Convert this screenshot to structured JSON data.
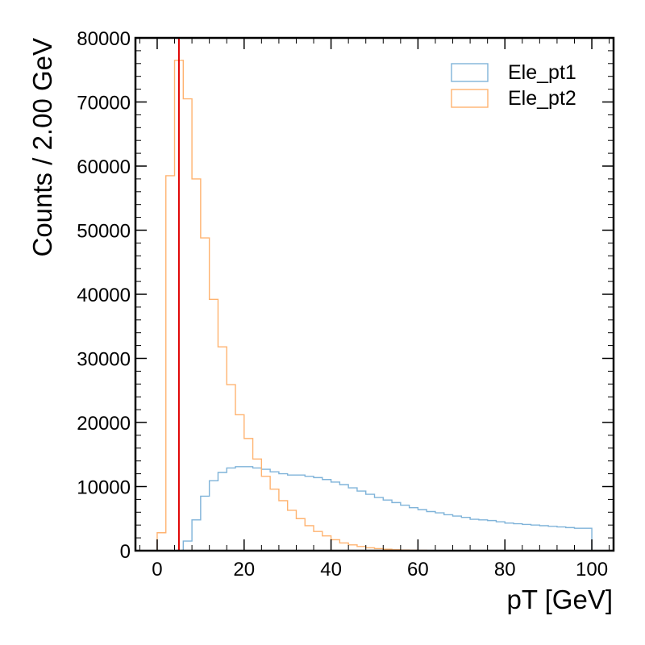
{
  "chart_data": {
    "type": "histogram",
    "title": "",
    "xlabel": "pT [GeV]",
    "ylabel": "Counts / 2.00 GeV",
    "xlim": [
      -5,
      105
    ],
    "ylim": [
      0,
      80000
    ],
    "x_ticks": [
      0,
      20,
      40,
      60,
      80,
      100
    ],
    "y_ticks": [
      0,
      10000,
      20000,
      30000,
      40000,
      50000,
      60000,
      70000,
      80000
    ],
    "bin_edges_start": 0,
    "bin_width": 2,
    "grid": false,
    "legend_position": "top-right",
    "series": [
      {
        "name": "Ele_pt1",
        "color": "#7fb3d9",
        "values": [
          0,
          0,
          0,
          1500,
          4800,
          8500,
          10900,
          12200,
          12900,
          13100,
          13100,
          12900,
          12700,
          12300,
          12000,
          11800,
          11800,
          11600,
          11400,
          11100,
          10700,
          10300,
          9800,
          9300,
          8800,
          8300,
          7900,
          7500,
          7100,
          6700,
          6400,
          6100,
          5900,
          5600,
          5400,
          5200,
          4900,
          4800,
          4700,
          4500,
          4300,
          4200,
          4100,
          4000,
          3900,
          3800,
          3700,
          3600,
          3500,
          3500
        ]
      },
      {
        "name": "Ele_pt2",
        "color": "#ffb370",
        "values": [
          2800,
          58500,
          76500,
          70500,
          58000,
          48800,
          39200,
          31800,
          25900,
          21200,
          17500,
          14300,
          11600,
          9600,
          7800,
          6300,
          5000,
          3900,
          3000,
          2300,
          1700,
          1200,
          900,
          650,
          450,
          320,
          220,
          150,
          100,
          70,
          50,
          35,
          25,
          15,
          10,
          8,
          5,
          3,
          2,
          1,
          1,
          0,
          0,
          0,
          0,
          0,
          0,
          0,
          0,
          0
        ]
      }
    ],
    "vertical_line": {
      "x": 5,
      "color": "#e00000"
    }
  }
}
